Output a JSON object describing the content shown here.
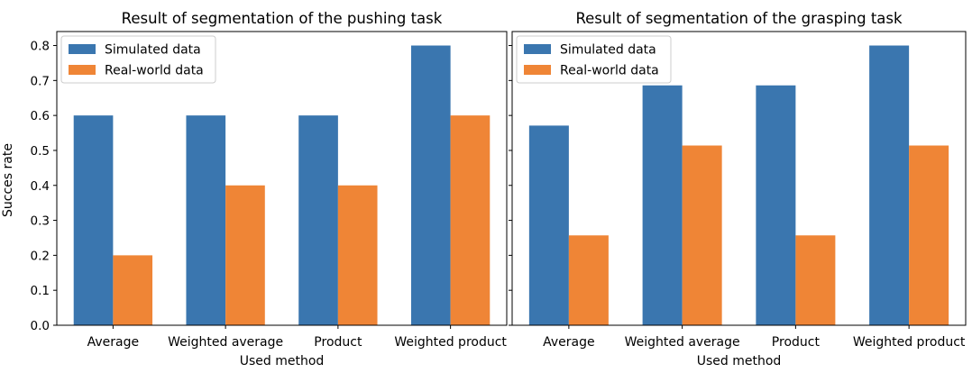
{
  "figure": {
    "y_axis_label": "Succes rate",
    "colors": {
      "simulated": "#3a76af",
      "real": "#ef8536"
    }
  },
  "chart_data": [
    {
      "type": "bar",
      "title": "Result of segmentation of the pushing task",
      "xlabel": "Used method",
      "ylabel": "Succes rate",
      "categories": [
        "Average",
        "Weighted average",
        "Product",
        "Weighted product"
      ],
      "series": [
        {
          "name": "Simulated data",
          "values": [
            0.6,
            0.6,
            0.6,
            0.8
          ]
        },
        {
          "name": "Real-world data",
          "values": [
            0.2,
            0.4,
            0.4,
            0.6
          ]
        }
      ],
      "ylim": [
        0,
        0.84
      ],
      "yticks": [
        "0.0",
        "0.1",
        "0.2",
        "0.3",
        "0.4",
        "0.5",
        "0.6",
        "0.7",
        "0.8"
      ],
      "legend": "top-left",
      "grid": false
    },
    {
      "type": "bar",
      "title": "Result of segmentation of the grasping task",
      "xlabel": "Used method",
      "ylabel": "",
      "categories": [
        "Average",
        "Weighted average",
        "Product",
        "Weighted product"
      ],
      "series": [
        {
          "name": "Simulated data",
          "values": [
            0.571,
            0.686,
            0.686,
            0.8
          ]
        },
        {
          "name": "Real-world data",
          "values": [
            0.257,
            0.514,
            0.257,
            0.514
          ]
        }
      ],
      "ylim": [
        0,
        0.84
      ],
      "legend": "top-left",
      "grid": false
    }
  ]
}
